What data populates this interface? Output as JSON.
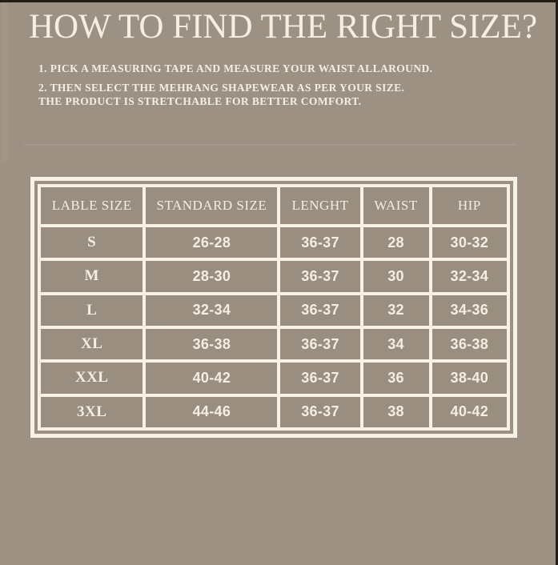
{
  "header": {
    "title": "HOW TO FIND THE RIGHT SIZE?"
  },
  "instructions": [
    "1. PICK A MEASURING TAPE AND MEASURE YOUR WAIST ALLAROUND.",
    "2. THEN SELECT THE MEHRANG SHAPEWEAR AS PER YOUR SIZE.",
    "THE PRODUCT IS STRETCHABLE FOR BETTER COMFORT."
  ],
  "colors": {
    "background": "#9d9183",
    "cell": "#9a8e80",
    "frame_white": "#f7f2e3",
    "text_cream": "#f4efe0",
    "edge_dark": "#231d18"
  },
  "chart_data": {
    "type": "table",
    "title": "HOW TO FIND THE RIGHT SIZE?",
    "columns": [
      "LABLE SIZE",
      "STANDARD SIZE",
      "LENGHT",
      "WAIST",
      "HIP"
    ],
    "rows": [
      [
        "S",
        "26-28",
        "36-37",
        "28",
        "30-32"
      ],
      [
        "M",
        "28-30",
        "36-37",
        "30",
        "32-34"
      ],
      [
        "L",
        "32-34",
        "36-37",
        "32",
        "34-36"
      ],
      [
        "XL",
        "36-38",
        "36-37",
        "34",
        "36-38"
      ],
      [
        "XXL",
        "40-42",
        "36-37",
        "36",
        "38-40"
      ],
      [
        "3XL",
        "44-46",
        "36-37",
        "38",
        "40-42"
      ]
    ]
  }
}
